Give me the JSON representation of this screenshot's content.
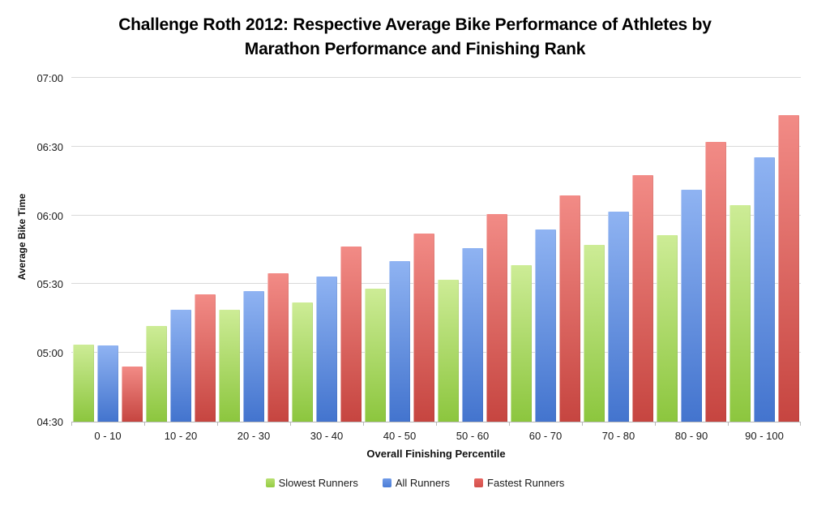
{
  "chart_data": {
    "type": "bar",
    "title": "Challenge Roth 2012: Respective Average Bike Performance of Athletes by Marathon Performance and Finishing Rank",
    "title_line1": "Challenge Roth 2012: Respective Average Bike Performance of Athletes by",
    "title_line2": "Marathon Performance and Finishing Rank",
    "xlabel": "Overall Finishing Percentile",
    "ylabel": "Average Bike Time",
    "categories": [
      "0 - 10",
      "10 - 20",
      "20 - 30",
      "30 - 40",
      "40 - 50",
      "50 - 60",
      "60 - 70",
      "70 - 80",
      "80 - 90",
      "90 - 100"
    ],
    "y_ticks": [
      "04:30",
      "05:00",
      "05:30",
      "06:00",
      "06:30",
      "07:00"
    ],
    "y_ticks_minutes": [
      270,
      300,
      330,
      360,
      390,
      420
    ],
    "ylim_minutes": [
      270,
      420
    ],
    "ylim_labels": [
      "04:30",
      "07:00"
    ],
    "grid": true,
    "legend_position": "bottom",
    "series": [
      {
        "name": "Slowest Runners",
        "color_top": "#cdec96",
        "color_bottom": "#8cc63e",
        "legend_color_top": "#b8e071",
        "legend_color_bottom": "#94cc43",
        "values_minutes": [
          303.5,
          311.6,
          318.8,
          322.0,
          328.1,
          331.8,
          338.3,
          347.0,
          351.3,
          364.4
        ],
        "values_hhmm": [
          "05:04",
          "05:12",
          "05:19",
          "05:22",
          "05:28",
          "05:32",
          "05:38",
          "05:47",
          "05:51",
          "06:04"
        ]
      },
      {
        "name": "All Runners",
        "color_top": "#8fb3f2",
        "color_bottom": "#4374ce",
        "legend_color_top": "#6f9ae8",
        "legend_color_bottom": "#4a7cd6",
        "values_minutes": [
          303.2,
          318.8,
          327.1,
          333.5,
          340.0,
          345.9,
          353.9,
          361.7,
          371.3,
          385.3
        ],
        "values_hhmm": [
          "05:03",
          "05:19",
          "05:27",
          "05:34",
          "05:40",
          "05:46",
          "05:54",
          "06:02",
          "06:11",
          "06:25"
        ]
      },
      {
        "name": "Fastest Runners",
        "color_top": "#f28b86",
        "color_bottom": "#c64540",
        "legend_color_top": "#e66560",
        "legend_color_bottom": "#d2504b",
        "values_minutes": [
          294.0,
          325.6,
          334.7,
          346.4,
          352.0,
          360.6,
          368.6,
          377.6,
          392.0,
          403.6
        ],
        "values_hhmm": [
          "04:54",
          "05:26",
          "05:35",
          "05:46",
          "05:52",
          "06:01",
          "06:09",
          "06:18",
          "06:32",
          "06:44"
        ]
      }
    ]
  },
  "colors": {
    "gridline": "#d9d9d9",
    "axis_line": "#b8b8b8",
    "text": "#1a1a1a",
    "background": "#ffffff"
  }
}
